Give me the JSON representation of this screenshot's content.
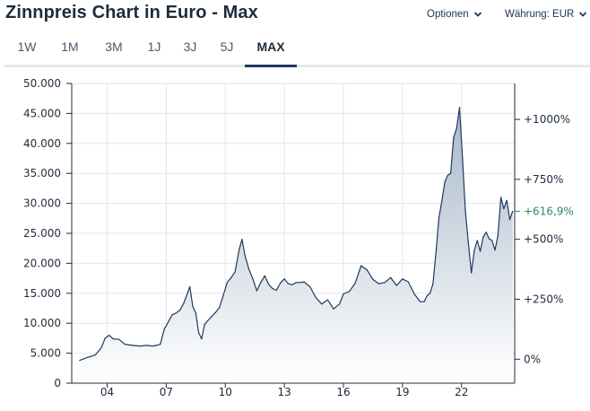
{
  "header": {
    "title": "Zinnpreis Chart in Euro - Max",
    "options_label": "Optionen",
    "currency_label": "Währung: EUR"
  },
  "tabs": [
    {
      "label": "1W",
      "active": false
    },
    {
      "label": "1M",
      "active": false
    },
    {
      "label": "3M",
      "active": false
    },
    {
      "label": "1J",
      "active": false
    },
    {
      "label": "3J",
      "active": false
    },
    {
      "label": "5J",
      "active": false
    },
    {
      "label": "MAX",
      "active": true
    }
  ],
  "colors": {
    "line": "#1e3a5f",
    "area_top": "#a9b8c9",
    "area_bottom": "#ffffff",
    "current_pct": "#2e8b57",
    "grid": "#e3e6ea"
  },
  "chart_data": {
    "type": "area",
    "title": "Zinnpreis Chart in Euro - Max",
    "xlabel": "",
    "ylabel": "",
    "x_tick_labels": [
      "04",
      "07",
      "10",
      "13",
      "16",
      "19",
      "22"
    ],
    "x_ticks": [
      2004,
      2007,
      2010,
      2013,
      2016,
      2019,
      2022
    ],
    "xlim": [
      2002.2,
      2024.7
    ],
    "ylim": [
      0,
      50000
    ],
    "y_tick_labels": [
      "0",
      "5.000",
      "10.000",
      "15.000",
      "20.000",
      "25.000",
      "30.000",
      "35.000",
      "40.000",
      "45.000",
      "50.000"
    ],
    "y_ticks": [
      0,
      5000,
      10000,
      15000,
      20000,
      25000,
      30000,
      35000,
      40000,
      45000,
      50000
    ],
    "right_axis": {
      "base_value": 4000,
      "tick_labels": [
        "0%",
        "+250%",
        "+500%",
        "+750%",
        "+1000%"
      ],
      "tick_percents": [
        0,
        250,
        500,
        750,
        1000
      ],
      "current_label": "+616,9%",
      "current_percent": 616.9
    },
    "grid": true,
    "series": [
      {
        "x": [
          2002.6,
          2003.0,
          2003.4,
          2003.7,
          2003.9,
          2004.1,
          2004.3,
          2004.6,
          2004.9,
          2005.3,
          2005.7,
          2006.0,
          2006.3,
          2006.5,
          2006.7,
          2006.9,
          2007.1,
          2007.3,
          2007.5,
          2007.7,
          2007.9,
          2008.1,
          2008.2,
          2008.35,
          2008.5,
          2008.65,
          2008.8,
          2008.95,
          2009.1,
          2009.3,
          2009.5,
          2009.7,
          2009.9,
          2010.1,
          2010.3,
          2010.5,
          2010.7,
          2010.85,
          2011.0,
          2011.2,
          2011.4,
          2011.6,
          2011.8,
          2012.0,
          2012.2,
          2012.4,
          2012.6,
          2012.8,
          2013.0,
          2013.2,
          2013.4,
          2013.6,
          2013.8,
          2014.0,
          2014.3,
          2014.6,
          2014.9,
          2015.2,
          2015.5,
          2015.8,
          2016.0,
          2016.3,
          2016.6,
          2016.9,
          2017.2,
          2017.5,
          2017.8,
          2018.1,
          2018.4,
          2018.7,
          2019.0,
          2019.3,
          2019.6,
          2019.9,
          2020.1,
          2020.25,
          2020.4,
          2020.55,
          2020.7,
          2020.85,
          2021.0,
          2021.15,
          2021.3,
          2021.45,
          2021.6,
          2021.75,
          2021.9,
          2022.05,
          2022.2,
          2022.35,
          2022.5,
          2022.65,
          2022.8,
          2022.95,
          2023.1,
          2023.25,
          2023.4,
          2023.55,
          2023.7,
          2023.85,
          2024.0,
          2024.15,
          2024.3,
          2024.45,
          2024.6
        ],
        "y": [
          3800,
          4300,
          4700,
          5900,
          7500,
          8000,
          7400,
          7300,
          6500,
          6300,
          6200,
          6300,
          6200,
          6300,
          6500,
          9000,
          10200,
          11400,
          11700,
          12200,
          13400,
          15200,
          16100,
          12800,
          11700,
          8400,
          7400,
          9800,
          10400,
          11100,
          11800,
          12600,
          14700,
          16800,
          17600,
          18600,
          22200,
          24000,
          21300,
          19000,
          17400,
          15400,
          16800,
          17900,
          16500,
          15800,
          15500,
          16700,
          17400,
          16600,
          16400,
          16800,
          16800,
          16900,
          16100,
          14300,
          13200,
          13900,
          12400,
          13200,
          14900,
          15300,
          16700,
          19600,
          18900,
          17300,
          16600,
          16800,
          17600,
          16300,
          17400,
          16900,
          14900,
          13600,
          13600,
          14600,
          15000,
          16600,
          21800,
          27600,
          30400,
          33600,
          34700,
          35000,
          41000,
          42500,
          46000,
          37500,
          28600,
          23300,
          18400,
          22200,
          23800,
          22000,
          24400,
          25200,
          24100,
          23800,
          22200,
          24600,
          31000,
          29100,
          30500,
          27300,
          28700
        ]
      }
    ]
  }
}
